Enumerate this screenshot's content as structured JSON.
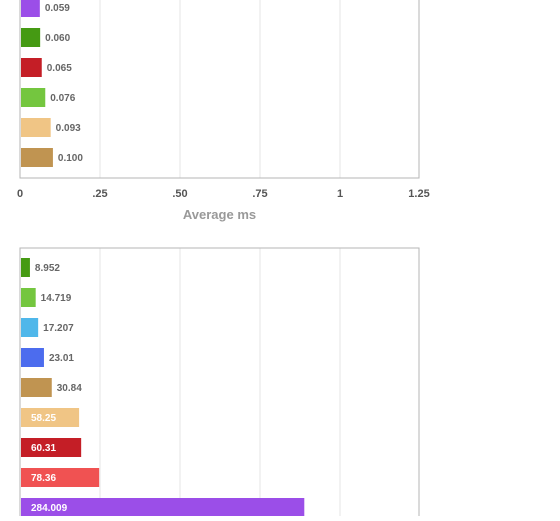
{
  "chart_data": [
    {
      "type": "bar",
      "orientation": "horizontal",
      "xlabel": "Average ms",
      "xlim": [
        0,
        1.25
      ],
      "xticks": [
        "0",
        ".25",
        ".50",
        ".75",
        "1",
        "1.25"
      ],
      "grid": true,
      "bars": [
        {
          "label": "0.059",
          "value": 0.059,
          "color": "#9b4ee8"
        },
        {
          "label": "0.060",
          "value": 0.06,
          "color": "#459a13"
        },
        {
          "label": "0.065",
          "value": 0.065,
          "color": "#c41e26"
        },
        {
          "label": "0.076",
          "value": 0.076,
          "color": "#74c63f"
        },
        {
          "label": "0.093",
          "value": 0.093,
          "color": "#f0c585"
        },
        {
          "label": "0.100",
          "value": 0.1,
          "color": "#c09451"
        }
      ]
    },
    {
      "type": "bar",
      "orientation": "horizontal",
      "xlim": [
        0,
        400
      ],
      "grid": true,
      "bars": [
        {
          "label": "8.952",
          "value": 8.952,
          "color": "#459a13"
        },
        {
          "label": "14.719",
          "value": 14.719,
          "color": "#74c63f"
        },
        {
          "label": "17.207",
          "value": 17.207,
          "color": "#4fb7ea"
        },
        {
          "label": "23.01",
          "value": 23.01,
          "color": "#4c6cee"
        },
        {
          "label": "30.84",
          "value": 30.84,
          "color": "#c09451"
        },
        {
          "label": "58.25",
          "value": 58.25,
          "color": "#f0c585"
        },
        {
          "label": "60.31",
          "value": 60.31,
          "color": "#c41e26"
        },
        {
          "label": "78.36",
          "value": 78.36,
          "color": "#f05252"
        },
        {
          "label": "284.009",
          "value": 284.009,
          "color": "#9b4ee8"
        }
      ]
    }
  ]
}
